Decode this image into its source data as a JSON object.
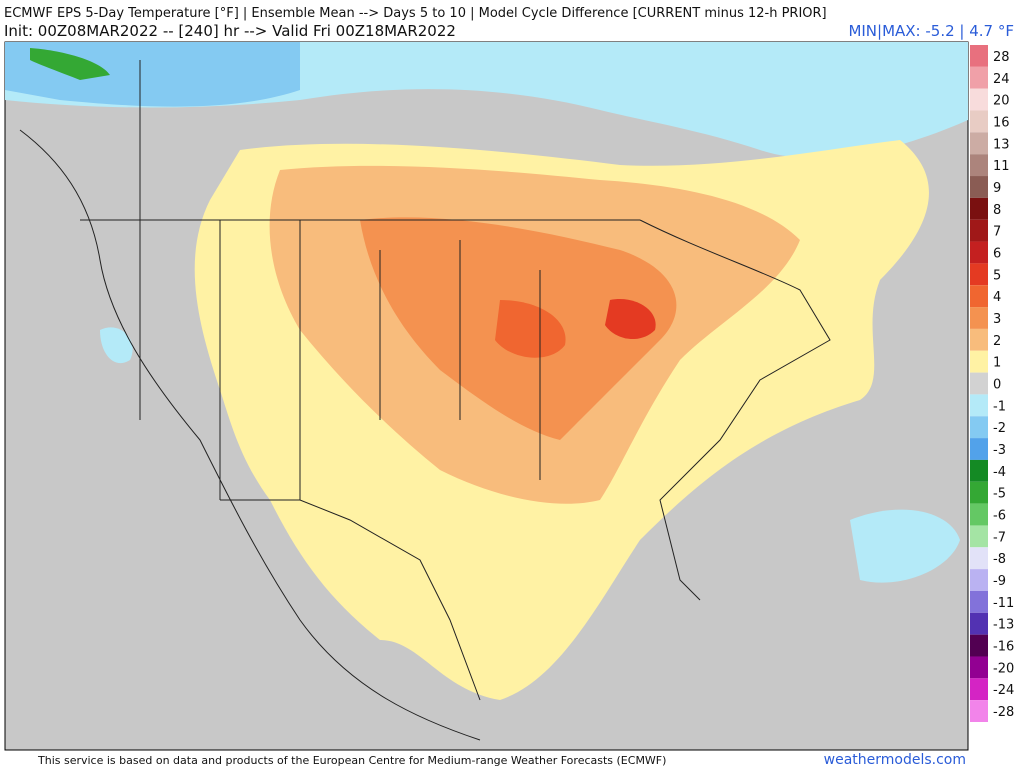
{
  "header": {
    "title": "ECMWF EPS 5-Day Temperature [°F] | Ensemble Mean --> Days 5 to 10 | Model Cycle Difference [CURRENT minus 12-h PRIOR]",
    "subtitle": "Init: 00Z08MAR2022 -- [240] hr --> Valid Fri 00Z18MAR2022",
    "minmax": "MIN|MAX: -5.2 | 4.7 °F"
  },
  "colorbar": {
    "ticks": [
      28,
      24,
      20,
      16,
      13,
      11,
      9,
      8,
      7,
      6,
      5,
      4,
      3,
      2,
      1,
      0,
      -1,
      -2,
      -3,
      -4,
      -5,
      -6,
      -7,
      -8,
      -9,
      -11,
      -13,
      -16,
      -20,
      -24,
      -28
    ],
    "colors": [
      "#e8707e",
      "#f0a0a8",
      "#f8dcdc",
      "#e8ccc4",
      "#ccaca4",
      "#ac847c",
      "#8a5c54",
      "#7a1010",
      "#a01818",
      "#c42020",
      "#e43a22",
      "#f06630",
      "#f49250",
      "#f8bc7c",
      "#fff2a4",
      "#d2d2d2",
      "#b4eaf8",
      "#84caf2",
      "#52a2ea",
      "#148a24",
      "#34a834",
      "#64c864",
      "#a4e4a4",
      "#e2e2f8",
      "#bab2f2",
      "#8272da",
      "#5232b2",
      "#520052",
      "#920092",
      "#d424c4",
      "#f284ea"
    ]
  },
  "footer": {
    "credit": "This service is based on data and products of the European Centre for Medium-range Weather Forecasts (ECMWF)",
    "site": "weathermodels.com"
  }
}
